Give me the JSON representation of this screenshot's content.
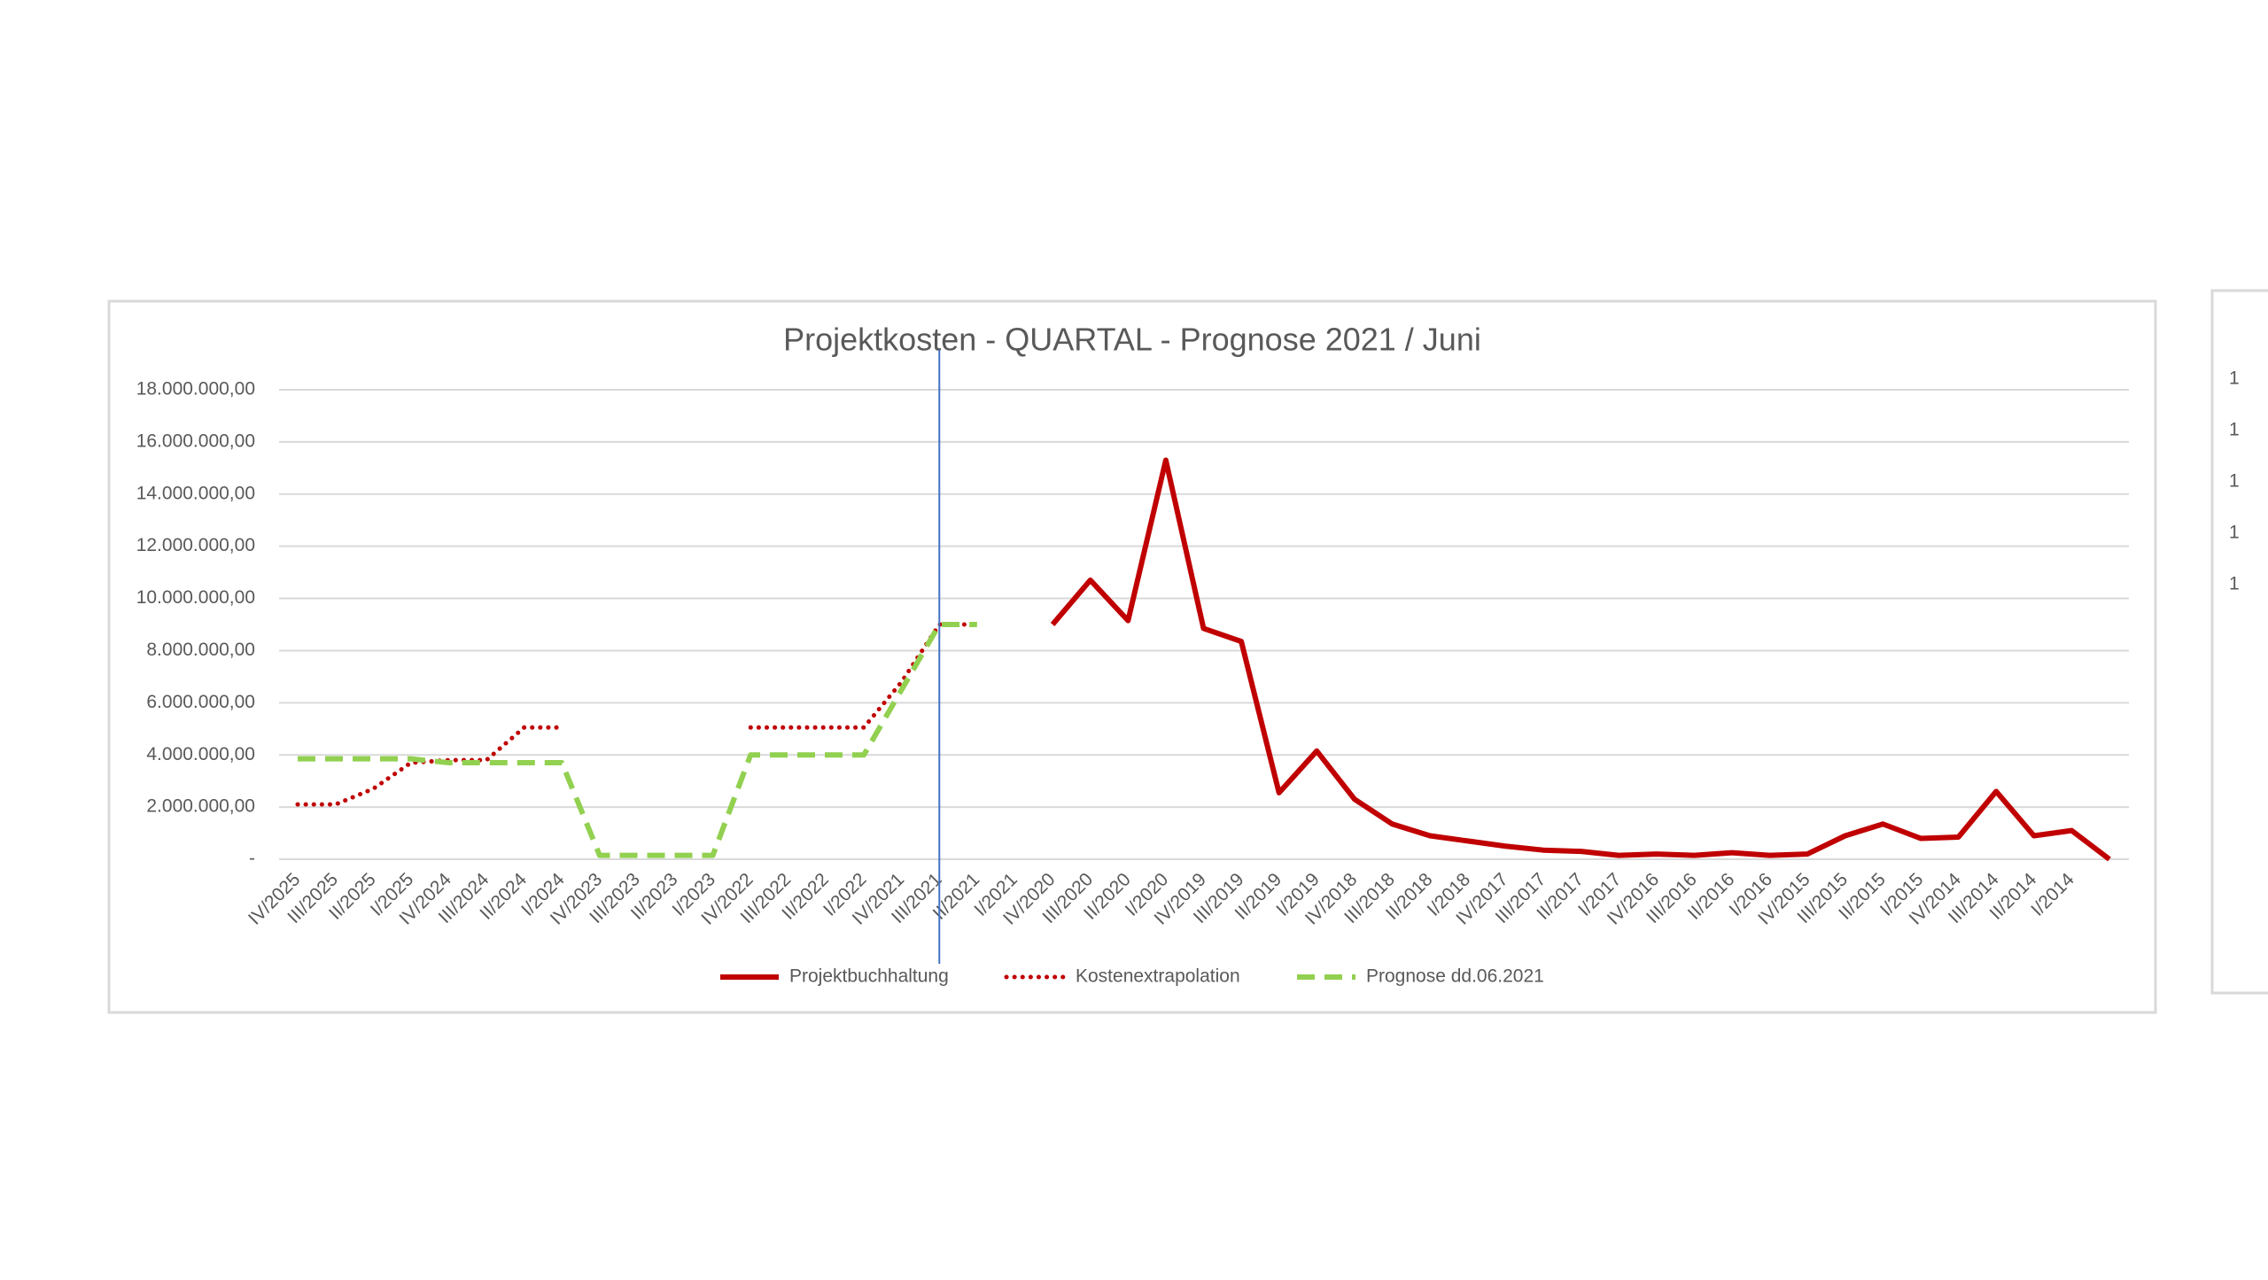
{
  "chart_data": {
    "type": "line",
    "title": "Projektkosten - QUARTAL - Prognose 2021 / Juni",
    "categories": [
      "IV/2025",
      "III/2025",
      "II/2025",
      "I/2025",
      "IV/2024",
      "III/2024",
      "II/2024",
      "I/2024",
      "IV/2023",
      "III/2023",
      "II/2023",
      "I/2023",
      "IV/2022",
      "III/2022",
      "II/2022",
      "I/2022",
      "IV/2021",
      "III/2021",
      "II/2021",
      "I/2021",
      "IV/2020",
      "III/2020",
      "II/2020",
      "I/2020",
      "IV/2019",
      "III/2019",
      "II/2019",
      "I/2019",
      "IV/2018",
      "III/2018",
      "II/2018",
      "I/2018",
      "IV/2017",
      "III/2017",
      "II/2017",
      "I/2017",
      "IV/2016",
      "III/2016",
      "II/2016",
      "I/2016",
      "IV/2015",
      "III/2015",
      "II/2015",
      "I/2015",
      "IV/2014",
      "III/2014",
      "II/2014",
      "I/2014",
      null
    ],
    "series": [
      {
        "name": "Projektbuchhaltung",
        "color": "#c00000",
        "style": "solid",
        "values": [
          null,
          null,
          null,
          null,
          null,
          null,
          null,
          null,
          null,
          null,
          null,
          null,
          null,
          null,
          null,
          null,
          null,
          null,
          null,
          null,
          9000000,
          10700000,
          9150000,
          15300000,
          8850000,
          8350000,
          2550000,
          4150000,
          2300000,
          1350000,
          900000,
          700000,
          500000,
          350000,
          300000,
          150000,
          200000,
          150000,
          250000,
          150000,
          200000,
          900000,
          1350000,
          800000,
          850000,
          2600000,
          900000,
          1100000,
          0
        ]
      },
      {
        "name": "Kostenextrapolation",
        "color": "#c00000",
        "style": "dotted",
        "values": [
          2100000,
          2100000,
          2700000,
          3700000,
          3800000,
          3800000,
          5050000,
          5050000,
          null,
          null,
          null,
          null,
          5050000,
          5050000,
          5050000,
          5050000,
          6800000,
          9000000,
          9000000,
          null,
          null,
          null,
          null,
          null,
          null,
          null,
          null,
          null,
          null,
          null,
          null,
          null,
          null,
          null,
          null,
          null,
          null,
          null,
          null,
          null,
          null,
          null,
          null,
          null,
          null,
          null,
          null,
          null,
          null
        ]
      },
      {
        "name": "Prognose dd.06.2021",
        "color": "#92d050",
        "style": "dashed",
        "values": [
          3850000,
          3850000,
          3850000,
          3850000,
          3700000,
          3700000,
          3700000,
          3700000,
          150000,
          150000,
          150000,
          150000,
          4000000,
          4000000,
          4000000,
          4000000,
          6500000,
          9000000,
          9000000,
          null,
          null,
          null,
          null,
          null,
          null,
          null,
          null,
          null,
          null,
          null,
          null,
          null,
          null,
          null,
          null,
          null,
          null,
          null,
          null,
          null,
          null,
          null,
          null,
          null,
          null,
          null,
          null,
          null,
          null
        ]
      }
    ],
    "ylim": [
      0,
      18000000
    ],
    "yticks": [
      {
        "value": 0,
        "label": "-"
      },
      {
        "value": 2000000,
        "label": "2.000.000,00"
      },
      {
        "value": 4000000,
        "label": "4.000.000,00"
      },
      {
        "value": 6000000,
        "label": "6.000.000,00"
      },
      {
        "value": 8000000,
        "label": "8.000.000,00"
      },
      {
        "value": 10000000,
        "label": "10.000.000,00"
      },
      {
        "value": 12000000,
        "label": "12.000.000,00"
      },
      {
        "value": 14000000,
        "label": "14.000.000,00"
      },
      {
        "value": 16000000,
        "label": "16.000.000,00"
      },
      {
        "value": 18000000,
        "label": "18.000.000,00"
      }
    ],
    "grid": true,
    "legend": "bottom",
    "marker_line_color": "#4472c4"
  },
  "partial_chart_labels": [
    "1",
    "1",
    "1",
    "1",
    "1"
  ]
}
